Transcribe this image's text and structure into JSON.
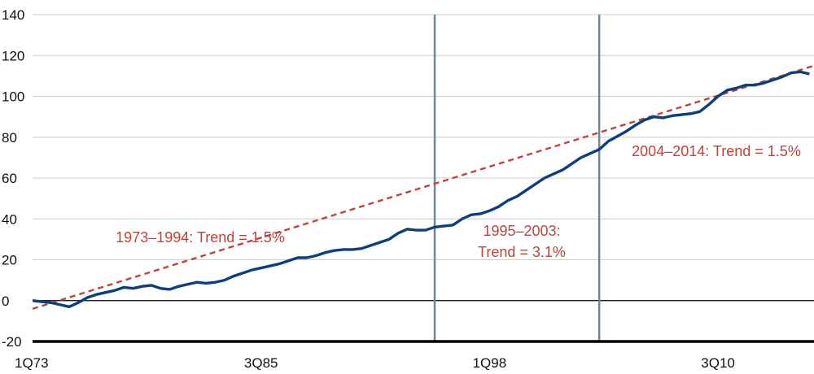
{
  "colors": {
    "series": "#0d3f7f",
    "trend": "#c0433a",
    "grid": "#cccccc",
    "zero_line": "#000000",
    "axis": "#000000",
    "breakline": "#6f8794"
  },
  "chart_data": {
    "type": "line",
    "title": "",
    "xlabel": "",
    "ylabel": "",
    "ylim": [
      -20,
      140
    ],
    "yticks": [
      "140",
      "120",
      "100",
      "80",
      "60",
      "40",
      "20",
      "0",
      "-20"
    ],
    "yticks_values": [
      140,
      120,
      100,
      80,
      60,
      40,
      20,
      0,
      -20
    ],
    "xtick_labels": [
      "1Q73",
      "3Q85",
      "1Q98",
      "3Q10"
    ],
    "xtick_values": [
      1973.0,
      1985.5,
      1998.0,
      2010.5
    ],
    "xlim": [
      1973.0,
      2015.75
    ],
    "grid": true,
    "break_years": [
      1995.0,
      2004.0
    ],
    "series": [
      {
        "x": [
          1973.0,
          1973.5,
          1974.0,
          1974.5,
          1975.0,
          1975.5,
          1976.0,
          1976.5,
          1977.0,
          1977.5,
          1978.0,
          1978.5,
          1979.0,
          1979.5,
          1980.0,
          1980.5,
          1981.0,
          1981.5,
          1982.0,
          1982.5,
          1983.0,
          1983.5,
          1984.0,
          1984.5,
          1985.0,
          1985.5,
          1986.0,
          1986.5,
          1987.0,
          1987.5,
          1988.0,
          1988.5,
          1989.0,
          1989.5,
          1990.0,
          1990.5,
          1991.0,
          1991.5,
          1992.0,
          1992.5,
          1993.0,
          1993.5,
          1994.0,
          1994.5,
          1995.0,
          1995.5,
          1996.0,
          1996.5,
          1997.0,
          1997.5,
          1998.0,
          1998.5,
          1999.0,
          1999.5,
          2000.0,
          2000.5,
          2001.0,
          2001.5,
          2002.0,
          2002.5,
          2003.0,
          2003.5,
          2004.0,
          2004.5,
          2005.0,
          2005.5,
          2006.0,
          2006.5,
          2007.0,
          2007.5,
          2008.0,
          2008.5,
          2009.0,
          2009.5,
          2010.0,
          2010.5,
          2011.0,
          2011.5,
          2012.0,
          2012.5,
          2013.0,
          2013.5,
          2014.0,
          2014.5,
          2015.0,
          2015.5
        ],
        "values": [
          0,
          -0.5,
          -1,
          -2,
          -3,
          -1,
          1.5,
          3,
          4,
          5,
          6.5,
          6,
          7,
          7.5,
          6,
          5.5,
          7,
          8,
          9,
          8.5,
          9,
          10,
          12,
          13.5,
          15,
          16,
          17,
          18,
          19.5,
          21,
          21,
          22,
          23.5,
          24.5,
          25,
          25,
          25.5,
          27,
          28.5,
          30,
          33,
          35,
          34.5,
          34.5,
          36,
          36.5,
          37,
          40,
          42,
          42.5,
          44,
          46,
          49,
          51,
          54,
          57,
          60,
          62,
          64,
          67,
          70,
          72,
          74,
          78,
          80.5,
          83,
          86,
          88.5,
          90,
          89.5,
          90.5,
          91,
          91.5,
          92.5,
          96,
          100,
          103,
          104,
          105.5,
          105.5,
          106.5,
          108,
          109.5,
          111.5,
          112,
          111
        ]
      }
    ],
    "trend_lines": [
      {
        "name": "1973–1994",
        "x": [
          1973.0,
          2015.75
        ],
        "y": [
          -4,
          115
        ]
      }
    ],
    "annotations": [
      {
        "text": "1973–1994: Trend = 1.5%"
      },
      {
        "text": "1995–2003:"
      },
      {
        "text": "Trend = 3.1%"
      },
      {
        "text": "2004–2014: Trend = 1.5%"
      }
    ]
  }
}
